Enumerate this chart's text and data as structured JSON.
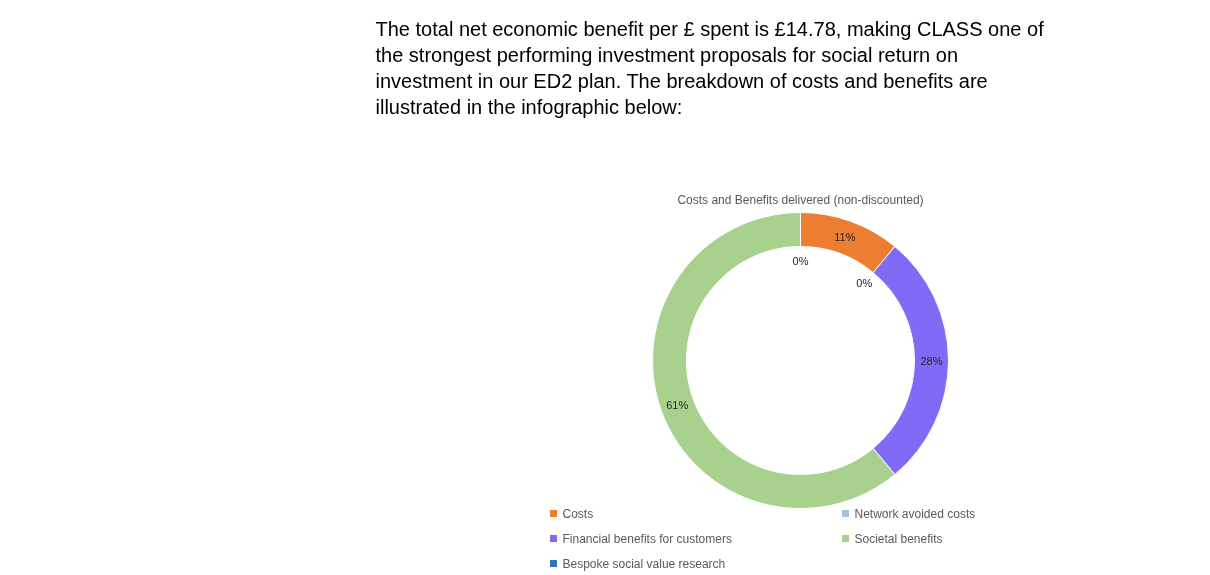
{
  "chart_data": {
    "type": "donut",
    "title": "Costs and Benefits delivered (non-discounted)",
    "annotations": [
      "The total net economic benefit per £ spent is £14.78, making CLASS one of the strongest performing investment proposals for social return on investment in our ED2 plan. The breakdown of costs and benefits are illustrated in the infographic below:"
    ],
    "categories": [
      "Costs",
      "Network avoided costs",
      "Financial benefits for customers",
      "Societal benefits",
      "Bespoke social value research"
    ],
    "values": [
      11,
      0,
      28,
      61,
      0
    ],
    "colors": [
      "#ed7d31",
      "#9dc3e6",
      "#7f6bf5",
      "#a9d18e",
      "#2e75b6"
    ],
    "value_labels": [
      "11%",
      "0%",
      "28%",
      "61%",
      "0%"
    ],
    "legend": "bottom"
  }
}
